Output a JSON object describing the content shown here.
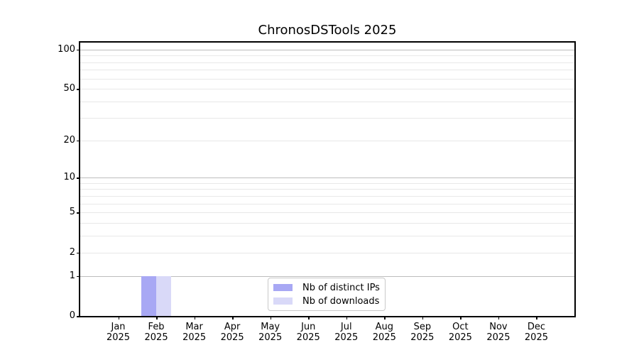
{
  "chart_data": {
    "type": "bar",
    "title": "ChronosDSTools 2025",
    "xlabel": "",
    "ylabel": "",
    "categories": [
      "Jan 2025",
      "Feb 2025",
      "Mar 2025",
      "Apr 2025",
      "May 2025",
      "Jun 2025",
      "Jul 2025",
      "Aug 2025",
      "Sep 2025",
      "Oct 2025",
      "Nov 2025",
      "Dec 2025"
    ],
    "series": [
      {
        "name": "Nb of distinct IPs",
        "color": "#a8a8f4",
        "values": [
          0,
          1,
          0,
          0,
          0,
          0,
          0,
          0,
          0,
          0,
          0,
          0
        ]
      },
      {
        "name": "Nb of downloads",
        "color": "#d9d9f8",
        "values": [
          0,
          1,
          0,
          0,
          0,
          0,
          0,
          0,
          0,
          0,
          0,
          0
        ]
      }
    ],
    "yscale": "log1p",
    "ylim": [
      0,
      113
    ],
    "ytick_values": [
      0,
      1,
      2,
      5,
      10,
      20,
      50,
      100
    ],
    "ytick_labels": [
      "0",
      "1",
      "2",
      "5",
      "10",
      "20",
      "50",
      "100"
    ],
    "major_grid_values": [
      1,
      10,
      100
    ],
    "minor_grid_values": [
      2,
      3,
      4,
      5,
      6,
      7,
      8,
      9,
      20,
      30,
      40,
      50,
      60,
      70,
      80,
      90
    ],
    "grid": {
      "on": true,
      "major_color": "#bdbdbd",
      "minor_color": "#e8e8e8"
    },
    "axis_color": "#000000",
    "background_color": "#ffffff",
    "legend": {
      "position": "lower center",
      "border_color": "#c9c9c9"
    },
    "bar_width_fraction": 0.4
  }
}
